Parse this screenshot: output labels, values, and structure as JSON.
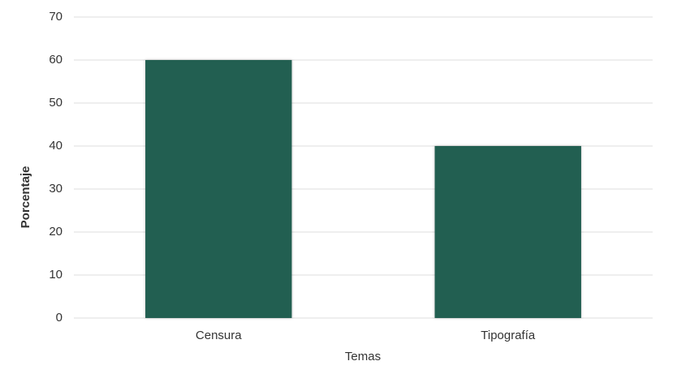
{
  "chart_data": {
    "type": "bar",
    "categories": [
      "Censura",
      "Tipografía"
    ],
    "values": [
      60,
      40
    ],
    "color": "#225f51",
    "xlabel": "Temas",
    "ylabel": "Porcentaje",
    "ylim": [
      0,
      70
    ],
    "yticks": [
      0,
      10,
      20,
      30,
      40,
      50,
      60,
      70
    ],
    "grid": true
  }
}
